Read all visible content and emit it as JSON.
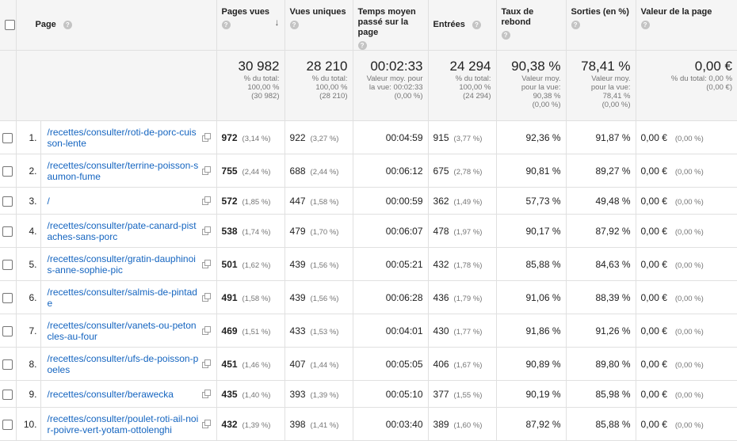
{
  "headers": {
    "page": "Page",
    "pageviews": "Pages vues",
    "unique": "Vues uniques",
    "avgtime": "Temps moyen passé sur la page",
    "entrances": "Entrées",
    "bounce": "Taux de rebond",
    "exit": "Sorties (en %)",
    "value": "Valeur de la page"
  },
  "help_icon": "?",
  "sort_icon": "↓",
  "totals": {
    "pageviews": {
      "value": "30 982",
      "l1": "% du total:",
      "l2": "100,00 %",
      "l3": "(30 982)"
    },
    "unique": {
      "value": "28 210",
      "l1": "% du total:",
      "l2": "100,00 %",
      "l3": "(28 210)"
    },
    "avgtime": {
      "value": "00:02:33",
      "l1": "Valeur moy. pour",
      "l2": "la vue: 00:02:33",
      "l3": "(0,00 %)"
    },
    "entrances": {
      "value": "24 294",
      "l1": "% du total:",
      "l2": "100,00 %",
      "l3": "(24 294)"
    },
    "bounce": {
      "value": "90,38 %",
      "l1": "Valeur moy.",
      "l2": "pour la vue:",
      "l3": "90,38 %",
      "l4": "(0,00 %)"
    },
    "exit": {
      "value": "78,41 %",
      "l1": "Valeur moy.",
      "l2": "pour la vue:",
      "l3": "78,41 %",
      "l4": "(0,00 %)"
    },
    "value": {
      "value": "0,00 €",
      "l1": "% du total: 0,00 %",
      "l2": "(0,00 €)"
    }
  },
  "rows": [
    {
      "n": "1.",
      "page": "/recettes/consulter/roti-de-porc-cuisson-lente",
      "pv": "972",
      "pvp": "(3,14 %)",
      "uv": "922",
      "uvp": "(3,27 %)",
      "t": "00:04:59",
      "e": "915",
      "ep": "(3,77 %)",
      "b": "92,36 %",
      "x": "91,87 %",
      "val": "0,00 €",
      "valp": "(0,00 %)"
    },
    {
      "n": "2.",
      "page": "/recettes/consulter/terrine-poisson-saumon-fume",
      "pv": "755",
      "pvp": "(2,44 %)",
      "uv": "688",
      "uvp": "(2,44 %)",
      "t": "00:06:12",
      "e": "675",
      "ep": "(2,78 %)",
      "b": "90,81 %",
      "x": "89,27 %",
      "val": "0,00 €",
      "valp": "(0,00 %)"
    },
    {
      "n": "3.",
      "page": "/",
      "pv": "572",
      "pvp": "(1,85 %)",
      "uv": "447",
      "uvp": "(1,58 %)",
      "t": "00:00:59",
      "e": "362",
      "ep": "(1,49 %)",
      "b": "57,73 %",
      "x": "49,48 %",
      "val": "0,00 €",
      "valp": "(0,00 %)"
    },
    {
      "n": "4.",
      "page": "/recettes/consulter/pate-canard-pistaches-sans-porc",
      "pv": "538",
      "pvp": "(1,74 %)",
      "uv": "479",
      "uvp": "(1,70 %)",
      "t": "00:06:07",
      "e": "478",
      "ep": "(1,97 %)",
      "b": "90,17 %",
      "x": "87,92 %",
      "val": "0,00 €",
      "valp": "(0,00 %)"
    },
    {
      "n": "5.",
      "page": "/recettes/consulter/gratin-dauphinois-anne-sophie-pic",
      "pv": "501",
      "pvp": "(1,62 %)",
      "uv": "439",
      "uvp": "(1,56 %)",
      "t": "00:05:21",
      "e": "432",
      "ep": "(1,78 %)",
      "b": "85,88 %",
      "x": "84,63 %",
      "val": "0,00 €",
      "valp": "(0,00 %)"
    },
    {
      "n": "6.",
      "page": "/recettes/consulter/salmis-de-pintade",
      "pv": "491",
      "pvp": "(1,58 %)",
      "uv": "439",
      "uvp": "(1,56 %)",
      "t": "00:06:28",
      "e": "436",
      "ep": "(1,79 %)",
      "b": "91,06 %",
      "x": "88,39 %",
      "val": "0,00 €",
      "valp": "(0,00 %)"
    },
    {
      "n": "7.",
      "page": "/recettes/consulter/vanets-ou-petoncles-au-four",
      "pv": "469",
      "pvp": "(1,51 %)",
      "uv": "433",
      "uvp": "(1,53 %)",
      "t": "00:04:01",
      "e": "430",
      "ep": "(1,77 %)",
      "b": "91,86 %",
      "x": "91,26 %",
      "val": "0,00 €",
      "valp": "(0,00 %)"
    },
    {
      "n": "8.",
      "page": "/recettes/consulter/ufs-de-poisson-poeles",
      "pv": "451",
      "pvp": "(1,46 %)",
      "uv": "407",
      "uvp": "(1,44 %)",
      "t": "00:05:05",
      "e": "406",
      "ep": "(1,67 %)",
      "b": "90,89 %",
      "x": "89,80 %",
      "val": "0,00 €",
      "valp": "(0,00 %)"
    },
    {
      "n": "9.",
      "page": "/recettes/consulter/berawecka",
      "pv": "435",
      "pvp": "(1,40 %)",
      "uv": "393",
      "uvp": "(1,39 %)",
      "t": "00:05:10",
      "e": "377",
      "ep": "(1,55 %)",
      "b": "90,19 %",
      "x": "85,98 %",
      "val": "0,00 €",
      "valp": "(0,00 %)"
    },
    {
      "n": "10.",
      "page": "/recettes/consulter/poulet-roti-ail-noir-poivre-vert-yotam-ottolenghi",
      "pv": "432",
      "pvp": "(1,39 %)",
      "uv": "398",
      "uvp": "(1,41 %)",
      "t": "00:03:40",
      "e": "389",
      "ep": "(1,60 %)",
      "b": "87,92 %",
      "x": "85,88 %",
      "val": "0,00 €",
      "valp": "(0,00 %)"
    }
  ]
}
